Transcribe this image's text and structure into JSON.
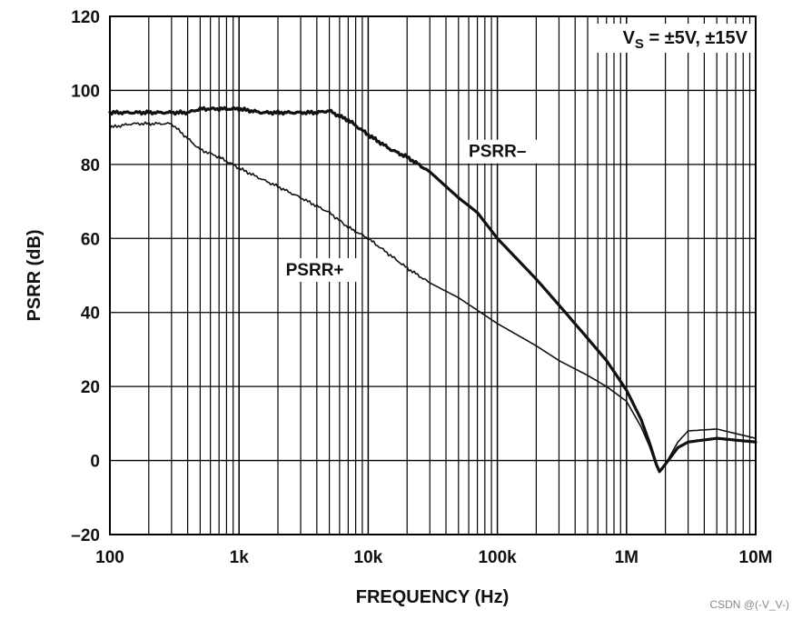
{
  "chart_data": {
    "type": "line",
    "title": "",
    "xlabel": "FREQUENCY (Hz)",
    "ylabel": "PSRR (dB)",
    "xscale": "log",
    "xlim": [
      100,
      10000000
    ],
    "ylim": [
      -20,
      120
    ],
    "grid": true,
    "x_ticks": [
      100,
      1000,
      10000,
      100000,
      1000000,
      10000000
    ],
    "x_tick_labels": [
      "100",
      "1k",
      "10k",
      "100k",
      "1M",
      "10M"
    ],
    "y_ticks": [
      120,
      100,
      80,
      60,
      40,
      20,
      0,
      -20
    ],
    "y_tick_labels": [
      "120",
      "100",
      "80",
      "60",
      "40",
      "20",
      "0",
      "–20"
    ],
    "annotation": {
      "main": "V",
      "sub": "S",
      "rest": " = ±5V, ±15V"
    },
    "series": [
      {
        "name": "PSRR–",
        "label": "PSRR–",
        "width": "thick",
        "x": [
          100,
          150,
          200,
          300,
          400,
          500,
          700,
          1000,
          1500,
          2000,
          3000,
          4000,
          5000,
          6000,
          7000,
          8000,
          10000,
          15000,
          20000,
          30000,
          50000,
          70000,
          100000,
          200000,
          300000,
          500000,
          700000,
          1000000,
          1300000,
          1500000,
          1700000,
          1800000,
          2000000,
          2500000,
          3000000,
          5000000,
          10000000
        ],
        "y": [
          94,
          94,
          94,
          94,
          94,
          95,
          95,
          95,
          94,
          94,
          94,
          94,
          94.5,
          93,
          92,
          90.5,
          88,
          84,
          82,
          78,
          71,
          67,
          60,
          49,
          42,
          33,
          27,
          19,
          11,
          5,
          -1,
          -3,
          -1,
          3.5,
          5,
          6,
          5
        ]
      },
      {
        "name": "PSRR+",
        "label": "PSRR+",
        "width": "thin",
        "x": [
          100,
          150,
          200,
          300,
          400,
          500,
          700,
          1000,
          1500,
          2000,
          3000,
          5000,
          7000,
          10000,
          20000,
          30000,
          50000,
          100000,
          200000,
          300000,
          500000,
          700000,
          1000000,
          1300000,
          1500000,
          1700000,
          1800000,
          2000000,
          2500000,
          3000000,
          5000000,
          10000000
        ],
        "y": [
          90,
          91,
          91,
          91,
          87,
          84,
          82,
          79,
          76,
          74,
          71,
          67,
          63,
          60,
          52,
          48,
          44,
          37,
          31,
          27,
          23,
          20,
          16,
          9,
          4,
          -1.5,
          -3,
          -1,
          5,
          8,
          8.5,
          6
        ]
      }
    ],
    "label_anchor": [
      {
        "series": "PSRR–",
        "x": 60000,
        "y": 82
      },
      {
        "series": "PSRR+",
        "x": 2300,
        "y": 50
      }
    ]
  },
  "watermark": "CSDN @(-V_V-)"
}
